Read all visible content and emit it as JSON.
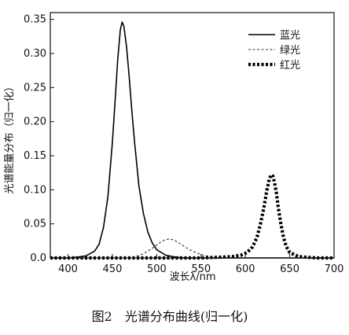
{
  "chart_data": {
    "type": "line",
    "xlabel": "波长λ/nm",
    "ylabel": "光谱能量分布（归一化）",
    "xlim": [
      380,
      700
    ],
    "ylim": [
      0,
      0.36
    ],
    "xticks": [
      400,
      450,
      500,
      550,
      600,
      650,
      700
    ],
    "yticks": [
      0.0,
      0.05,
      0.1,
      0.15,
      0.2,
      0.25,
      0.3,
      0.35
    ],
    "ytick_labels": [
      "0.0",
      "0.05",
      "0.10",
      "0.15",
      "0.20",
      "0.25",
      "0.30",
      "0.35"
    ],
    "xtick_labels": [
      "400",
      "450",
      "500",
      "550",
      "600",
      "650",
      "700"
    ],
    "legend_position": "top-right",
    "grid": false,
    "caption": "图2　光谱分布曲线(归一化)",
    "series": [
      {
        "name": "蓝光",
        "style": "solid",
        "x": [
          380,
          400,
          410,
          420,
          430,
          435,
          440,
          445,
          450,
          453,
          456,
          459,
          461,
          463,
          466,
          469,
          472,
          475,
          480,
          485,
          490,
          495,
          500,
          510,
          520,
          530,
          550,
          700
        ],
        "y": [
          0,
          0,
          0.001,
          0.003,
          0.01,
          0.02,
          0.045,
          0.09,
          0.17,
          0.23,
          0.29,
          0.335,
          0.346,
          0.34,
          0.31,
          0.265,
          0.215,
          0.17,
          0.105,
          0.065,
          0.038,
          0.022,
          0.012,
          0.004,
          0.0015,
          0,
          0,
          0
        ]
      },
      {
        "name": "绿光",
        "style": "dashed",
        "x": [
          380,
          460,
          475,
          485,
          495,
          502,
          508,
          514,
          520,
          526,
          532,
          540,
          550,
          560,
          575,
          600,
          700
        ],
        "y": [
          0,
          0,
          0.002,
          0.006,
          0.014,
          0.021,
          0.026,
          0.028,
          0.026,
          0.021,
          0.016,
          0.01,
          0.005,
          0.002,
          0.0005,
          0,
          0
        ],
        "color": "#333333"
      },
      {
        "name": "红光",
        "style": "dotted-bold",
        "x": [
          380,
          550,
          570,
          585,
          595,
          602,
          608,
          613,
          617,
          621,
          624,
          627,
          629,
          631,
          633,
          635,
          637,
          640,
          643,
          646,
          650,
          660,
          680,
          700
        ],
        "y": [
          0,
          0,
          0.001,
          0.002,
          0.004,
          0.008,
          0.016,
          0.03,
          0.05,
          0.075,
          0.098,
          0.116,
          0.122,
          0.12,
          0.11,
          0.095,
          0.075,
          0.05,
          0.03,
          0.017,
          0.008,
          0.002,
          0,
          0
        ]
      }
    ]
  }
}
